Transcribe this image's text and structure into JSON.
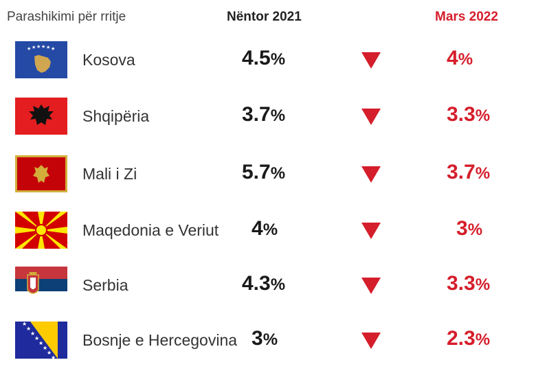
{
  "header": {
    "label": "Parashikimi për rritje",
    "col_nov": "Nëntor 2021",
    "col_mar": "Mars 2022"
  },
  "colors": {
    "decline": "#d51e2b"
  },
  "rows": [
    {
      "country": "Kosova",
      "flag_icon": "kosovo-flag-icon",
      "nov": "4.5",
      "mar": "4",
      "unit": "%",
      "trend_icon": "down-triangle-icon"
    },
    {
      "country": "Shqipëria",
      "flag_icon": "albania-flag-icon",
      "nov": "3.7",
      "mar": "3.3",
      "unit": "%",
      "trend_icon": "down-triangle-icon"
    },
    {
      "country": "Mali i Zi",
      "flag_icon": "montenegro-flag-icon",
      "nov": "5.7",
      "mar": "3.7",
      "unit": "%",
      "trend_icon": "down-triangle-icon"
    },
    {
      "country": "Maqedonia e Veriut",
      "flag_icon": "north-macedonia-flag-icon",
      "nov": "4",
      "mar": "3",
      "unit": "%",
      "trend_icon": "down-triangle-icon"
    },
    {
      "country": "Serbia",
      "flag_icon": "serbia-flag-icon",
      "nov": "4.3",
      "mar": "3.3",
      "unit": "%",
      "trend_icon": "down-triangle-icon"
    },
    {
      "country": "Bosnje e Hercegovina",
      "flag_icon": "bosnia-flag-icon",
      "nov": "3",
      "mar": "2.3",
      "unit": "%",
      "trend_icon": "down-triangle-icon"
    }
  ]
}
